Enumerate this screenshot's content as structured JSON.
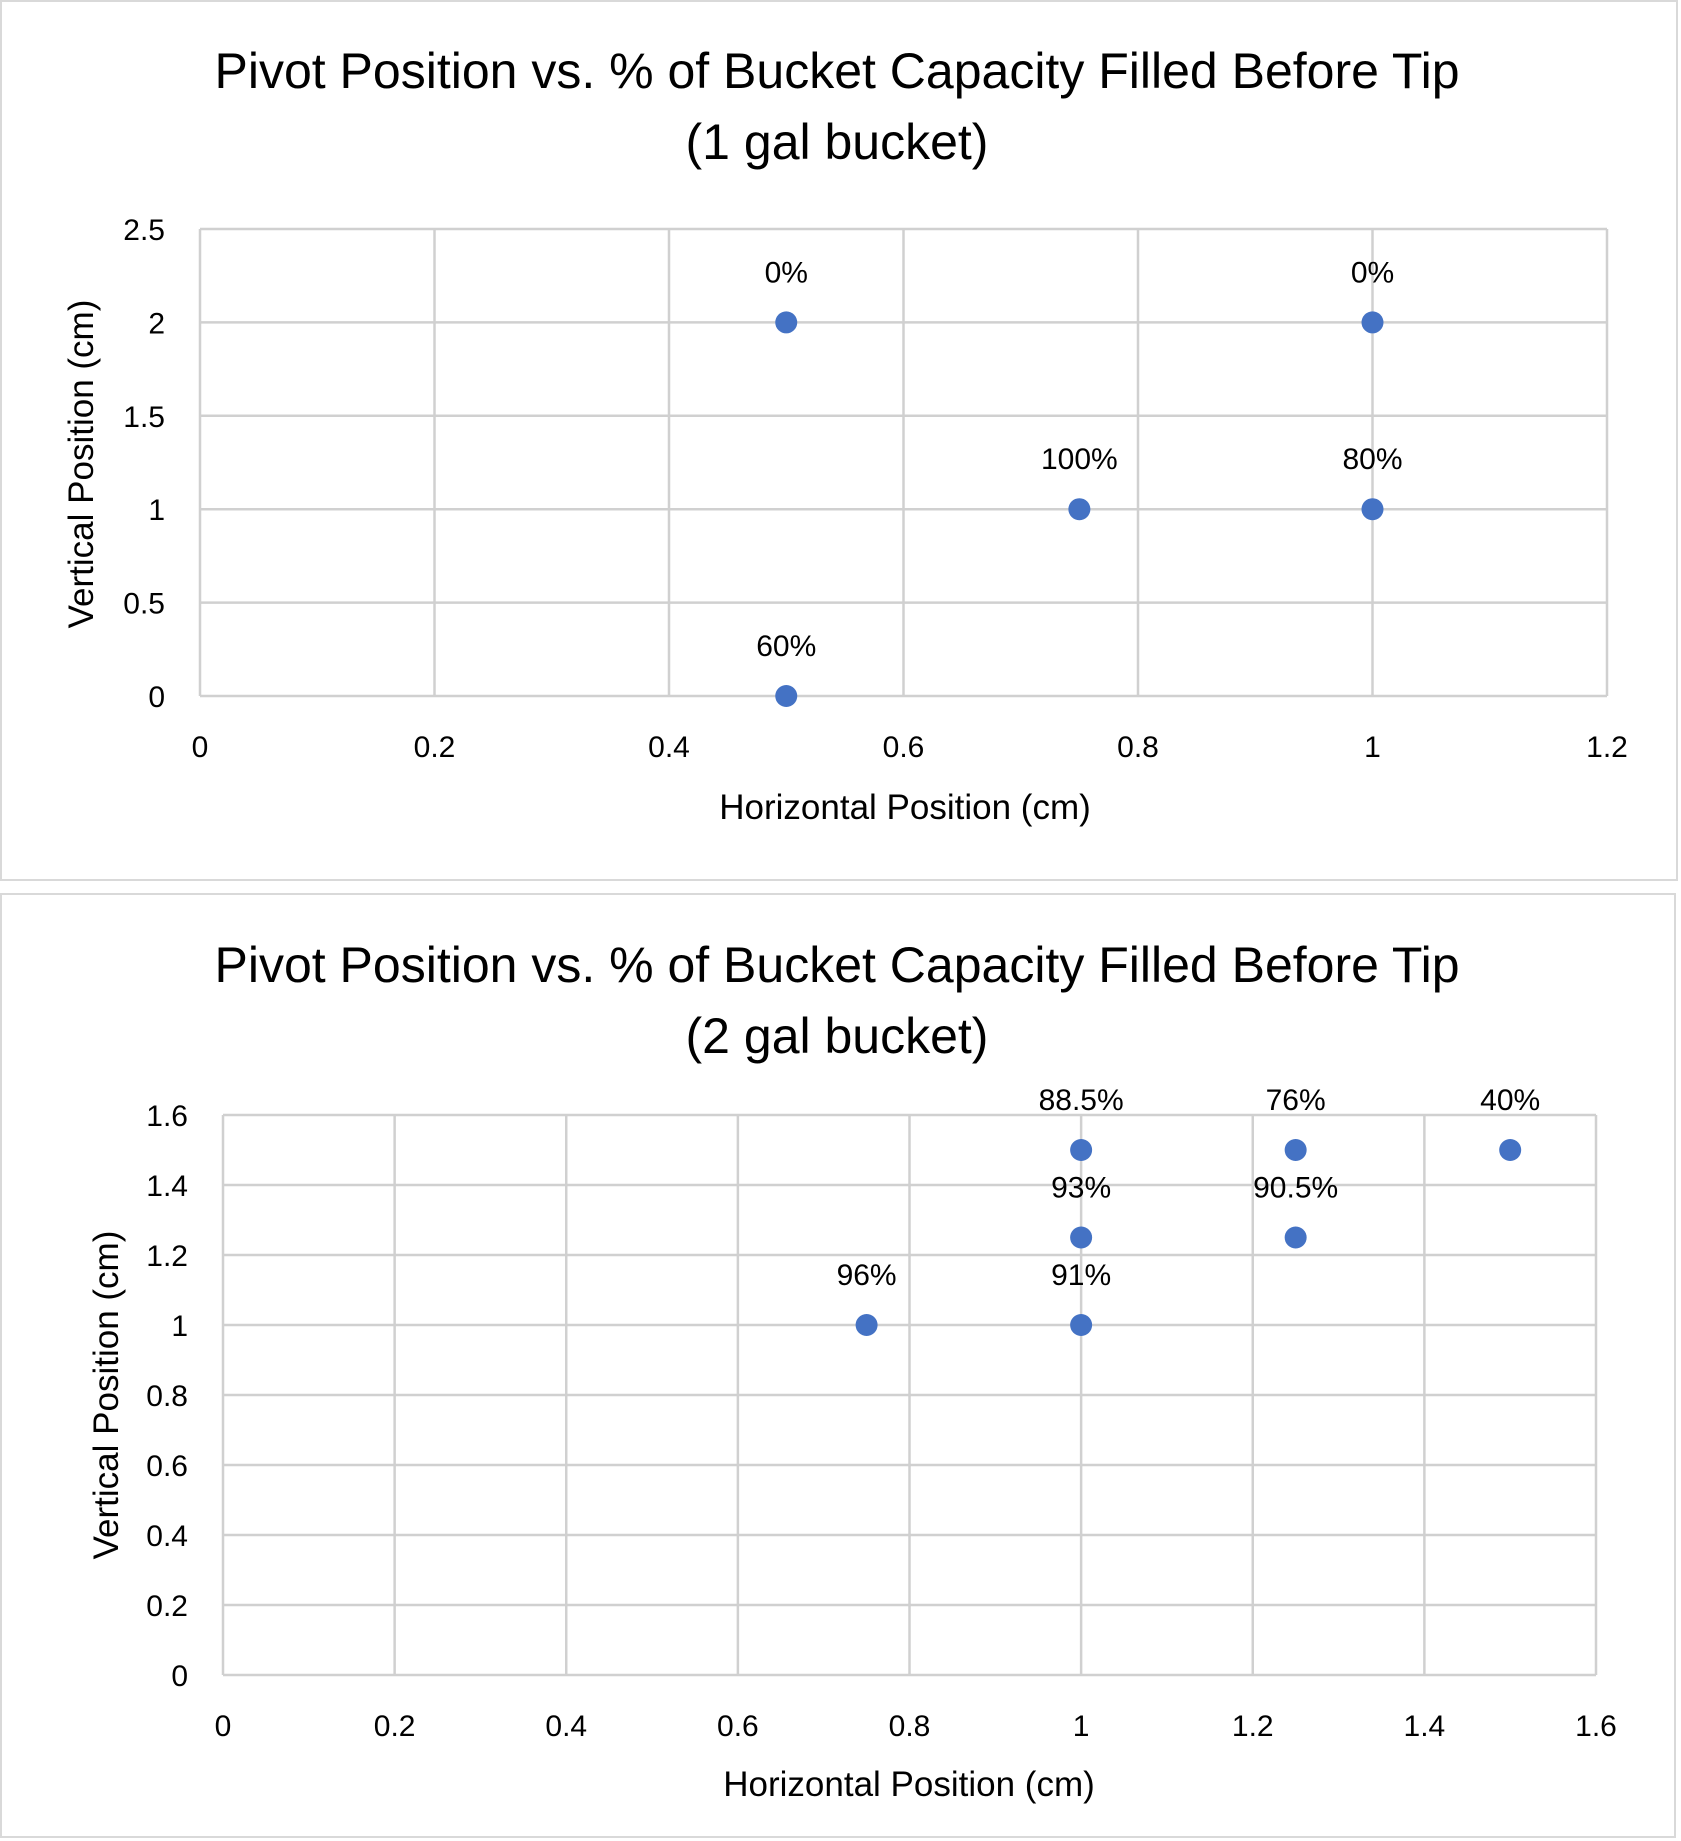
{
  "chart_data": [
    {
      "type": "scatter",
      "title_lines": [
        "Pivot Position vs. % of Bucket Capacity Filled Before Tip",
        "(1 gal bucket)"
      ],
      "xlabel": "Horizontal Position (cm)",
      "ylabel": "Vertical Position (cm)",
      "xlim": [
        0,
        1.2
      ],
      "ylim": [
        0,
        2.5
      ],
      "xticks": [
        "0",
        "0.2",
        "0.4",
        "0.6",
        "0.8",
        "1",
        "1.2"
      ],
      "yticks": [
        "0",
        "0.5",
        "1",
        "1.5",
        "2",
        "2.5"
      ],
      "grid": true,
      "legend": "none",
      "marker_color": "#4472C4",
      "points": [
        {
          "x": 0.5,
          "y": 2,
          "label": "0%"
        },
        {
          "x": 1,
          "y": 2,
          "label": "0%"
        },
        {
          "x": 0.75,
          "y": 1,
          "label": "100%"
        },
        {
          "x": 1,
          "y": 1,
          "label": "80%"
        },
        {
          "x": 0.5,
          "y": 0,
          "label": "60%"
        }
      ]
    },
    {
      "type": "scatter",
      "title_lines": [
        "Pivot Position vs. % of Bucket Capacity Filled Before Tip",
        "(2 gal bucket)"
      ],
      "xlabel": "Horizontal Position (cm)",
      "ylabel": "Vertical Position (cm)",
      "xlim": [
        0,
        1.6
      ],
      "ylim": [
        0,
        1.6
      ],
      "xticks": [
        "0",
        "0.2",
        "0.4",
        "0.6",
        "0.8",
        "1",
        "1.2",
        "1.4",
        "1.6"
      ],
      "yticks": [
        "0",
        "0.2",
        "0.4",
        "0.6",
        "0.8",
        "1",
        "1.2",
        "1.4",
        "1.6"
      ],
      "grid": true,
      "legend": "none",
      "marker_color": "#4472C4",
      "points": [
        {
          "x": 1,
          "y": 1.5,
          "label": "88.5%"
        },
        {
          "x": 1.25,
          "y": 1.5,
          "label": "76%"
        },
        {
          "x": 1.5,
          "y": 1.5,
          "label": "40%"
        },
        {
          "x": 1,
          "y": 1.25,
          "label": "93%"
        },
        {
          "x": 1.25,
          "y": 1.25,
          "label": "90.5%"
        },
        {
          "x": 0.75,
          "y": 1,
          "label": "96%"
        },
        {
          "x": 1,
          "y": 1,
          "label": "91%"
        }
      ]
    }
  ]
}
